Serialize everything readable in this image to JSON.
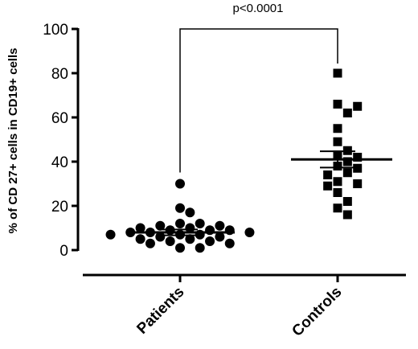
{
  "chart_data": {
    "type": "scatter",
    "ylabel": "% of CD 27+ cells in CD19+ cells",
    "ylim": [
      0,
      100
    ],
    "yticks": [
      0,
      20,
      40,
      60,
      80,
      100
    ],
    "grid": false,
    "categories": [
      "Patients",
      "Controls"
    ],
    "series": [
      {
        "name": "Patients",
        "marker": "circle",
        "mean": 8,
        "sem": 1.3,
        "values": [
          30,
          19,
          17,
          12,
          12,
          11,
          11,
          10,
          10,
          9,
          9,
          9,
          8,
          8,
          8,
          7,
          7,
          7,
          6,
          6,
          5,
          5,
          4,
          4,
          3,
          3,
          1,
          1
        ]
      },
      {
        "name": "Controls",
        "marker": "square",
        "mean": 41,
        "sem": 3.7,
        "values": [
          80,
          66,
          65,
          62,
          55,
          49,
          45,
          43,
          42,
          40,
          38,
          37,
          35,
          34,
          31,
          30,
          29,
          26,
          22,
          19,
          16
        ]
      }
    ],
    "annotation": {
      "text": "p<0.0001",
      "bracket_value": 100
    }
  }
}
